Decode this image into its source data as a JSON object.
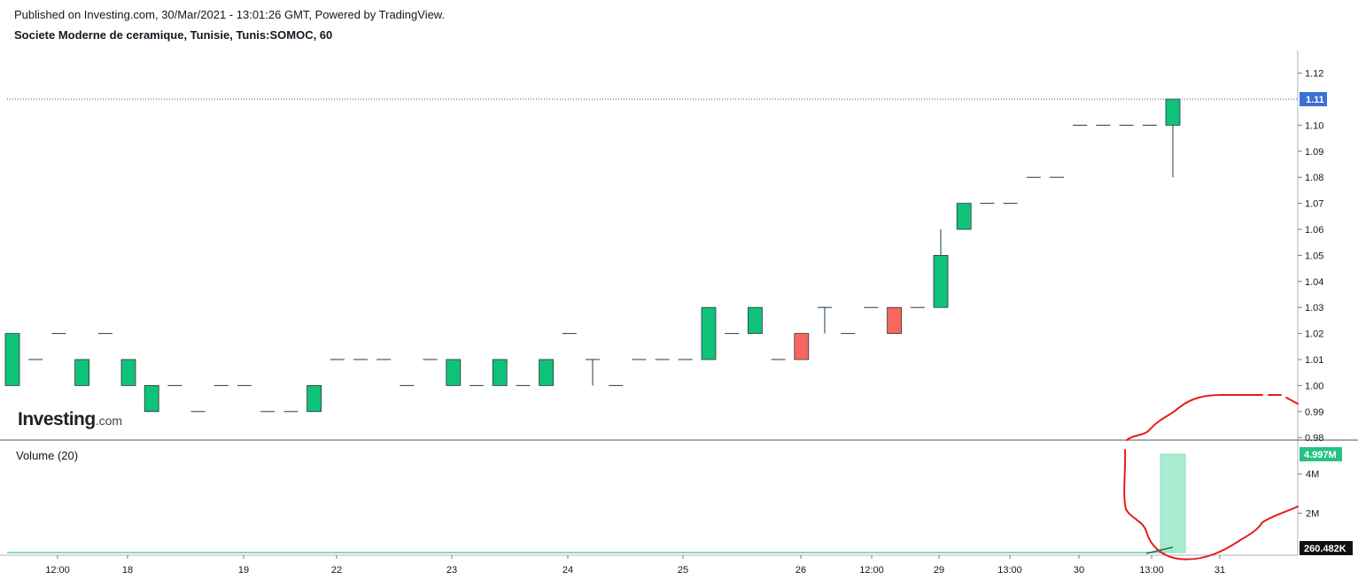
{
  "header": {
    "published": "Published on Investing.com, 30/Mar/2021 - 13:01:26 GMT, Powered by TradingView.",
    "symbol_line": "Societe Moderne de ceramique, Tunisie, Tunis:SOMOC, 60"
  },
  "logo": {
    "brand": "Investing",
    "domain": ".com"
  },
  "volume_panel": {
    "label": "Volume (20)"
  },
  "colors": {
    "up": "#0fc27a",
    "down": "#f7675f",
    "wick": "#1f3b4d",
    "price_line": "#2a4ea0",
    "price_badge": "#3b6fd6",
    "volume_badge": "#26c281",
    "volume_bar": "#a8ecd1",
    "annotation": "#e51b1b"
  },
  "chart_data": {
    "type": "candlestick",
    "price_axis": {
      "ticks": [
        1.12,
        1.1,
        1.09,
        1.08,
        1.07,
        1.06,
        1.05,
        1.04,
        1.03,
        1.02,
        1.01,
        1.0,
        0.99,
        0.98
      ],
      "ylim": [
        0.979,
        1.125
      ]
    },
    "last_price": "1.11",
    "x_tick_labels": [
      "12:00",
      "18",
      "19",
      "22",
      "23",
      "24",
      "25",
      "26",
      "12:00",
      "29",
      "13:00",
      "30",
      "13:00",
      "31"
    ],
    "candles": [
      {
        "o": 1.0,
        "h": 1.02,
        "l": 1.0,
        "c": 1.02
      },
      {
        "o": 1.01,
        "h": 1.01,
        "l": 1.01,
        "c": 1.01
      },
      {
        "o": 1.02,
        "h": 1.02,
        "l": 1.02,
        "c": 1.02
      },
      {
        "o": 1.0,
        "h": 1.01,
        "l": 1.0,
        "c": 1.01
      },
      {
        "o": 1.02,
        "h": 1.02,
        "l": 1.02,
        "c": 1.02
      },
      {
        "o": 1.0,
        "h": 1.01,
        "l": 1.0,
        "c": 1.01
      },
      {
        "o": 0.99,
        "h": 1.0,
        "l": 0.99,
        "c": 1.0
      },
      {
        "o": 1.0,
        "h": 1.0,
        "l": 1.0,
        "c": 1.0
      },
      {
        "o": 0.99,
        "h": 0.99,
        "l": 0.99,
        "c": 0.99
      },
      {
        "o": 1.0,
        "h": 1.0,
        "l": 1.0,
        "c": 1.0
      },
      {
        "o": 1.0,
        "h": 1.0,
        "l": 1.0,
        "c": 1.0
      },
      {
        "o": 0.99,
        "h": 0.99,
        "l": 0.99,
        "c": 0.99
      },
      {
        "o": 0.99,
        "h": 0.99,
        "l": 0.99,
        "c": 0.99
      },
      {
        "o": 0.99,
        "h": 1.0,
        "l": 0.99,
        "c": 1.0
      },
      {
        "o": 1.01,
        "h": 1.01,
        "l": 1.01,
        "c": 1.01
      },
      {
        "o": 1.01,
        "h": 1.01,
        "l": 1.01,
        "c": 1.01
      },
      {
        "o": 1.01,
        "h": 1.01,
        "l": 1.01,
        "c": 1.01
      },
      {
        "o": 1.0,
        "h": 1.0,
        "l": 1.0,
        "c": 1.0
      },
      {
        "o": 1.01,
        "h": 1.01,
        "l": 1.01,
        "c": 1.01
      },
      {
        "o": 1.0,
        "h": 1.01,
        "l": 1.0,
        "c": 1.01
      },
      {
        "o": 1.0,
        "h": 1.0,
        "l": 1.0,
        "c": 1.0
      },
      {
        "o": 1.0,
        "h": 1.01,
        "l": 1.0,
        "c": 1.01
      },
      {
        "o": 1.0,
        "h": 1.0,
        "l": 1.0,
        "c": 1.0
      },
      {
        "o": 1.0,
        "h": 1.01,
        "l": 1.0,
        "c": 1.01
      },
      {
        "o": 1.02,
        "h": 1.02,
        "l": 1.02,
        "c": 1.02
      },
      {
        "o": 1.01,
        "h": 1.01,
        "l": 1.0,
        "c": 1.01
      },
      {
        "o": 1.0,
        "h": 1.0,
        "l": 1.0,
        "c": 1.0
      },
      {
        "o": 1.01,
        "h": 1.01,
        "l": 1.01,
        "c": 1.01
      },
      {
        "o": 1.01,
        "h": 1.01,
        "l": 1.01,
        "c": 1.01
      },
      {
        "o": 1.01,
        "h": 1.01,
        "l": 1.01,
        "c": 1.01
      },
      {
        "o": 1.01,
        "h": 1.03,
        "l": 1.01,
        "c": 1.03
      },
      {
        "o": 1.02,
        "h": 1.02,
        "l": 1.02,
        "c": 1.02
      },
      {
        "o": 1.02,
        "h": 1.03,
        "l": 1.02,
        "c": 1.03
      },
      {
        "o": 1.01,
        "h": 1.01,
        "l": 1.01,
        "c": 1.01
      },
      {
        "o": 1.02,
        "h": 1.02,
        "l": 1.01,
        "c": 1.01
      },
      {
        "o": 1.03,
        "h": 1.03,
        "l": 1.02,
        "c": 1.03
      },
      {
        "o": 1.02,
        "h": 1.02,
        "l": 1.02,
        "c": 1.02
      },
      {
        "o": 1.03,
        "h": 1.03,
        "l": 1.03,
        "c": 1.03
      },
      {
        "o": 1.03,
        "h": 1.03,
        "l": 1.02,
        "c": 1.02
      },
      {
        "o": 1.03,
        "h": 1.03,
        "l": 1.03,
        "c": 1.03
      },
      {
        "o": 1.03,
        "h": 1.06,
        "l": 1.03,
        "c": 1.05
      },
      {
        "o": 1.06,
        "h": 1.07,
        "l": 1.06,
        "c": 1.07
      },
      {
        "o": 1.07,
        "h": 1.07,
        "l": 1.07,
        "c": 1.07
      },
      {
        "o": 1.07,
        "h": 1.07,
        "l": 1.07,
        "c": 1.07
      },
      {
        "o": 1.08,
        "h": 1.08,
        "l": 1.08,
        "c": 1.08
      },
      {
        "o": 1.08,
        "h": 1.08,
        "l": 1.08,
        "c": 1.08
      },
      {
        "o": 1.1,
        "h": 1.1,
        "l": 1.1,
        "c": 1.1
      },
      {
        "o": 1.1,
        "h": 1.1,
        "l": 1.1,
        "c": 1.1
      },
      {
        "o": 1.1,
        "h": 1.1,
        "l": 1.1,
        "c": 1.1
      },
      {
        "o": 1.1,
        "h": 1.1,
        "l": 1.1,
        "c": 1.1
      },
      {
        "o": 1.1,
        "h": 1.11,
        "l": 1.08,
        "c": 1.11
      }
    ],
    "volume": {
      "axis_ticks": [
        "4M",
        "2M"
      ],
      "axis_tick_values": [
        4000000,
        2000000
      ],
      "ylim": [
        0,
        5000000
      ],
      "last_value": 4997000,
      "last_label": "4.997M",
      "average_label": "260.482K",
      "average_value": 260482
    }
  }
}
